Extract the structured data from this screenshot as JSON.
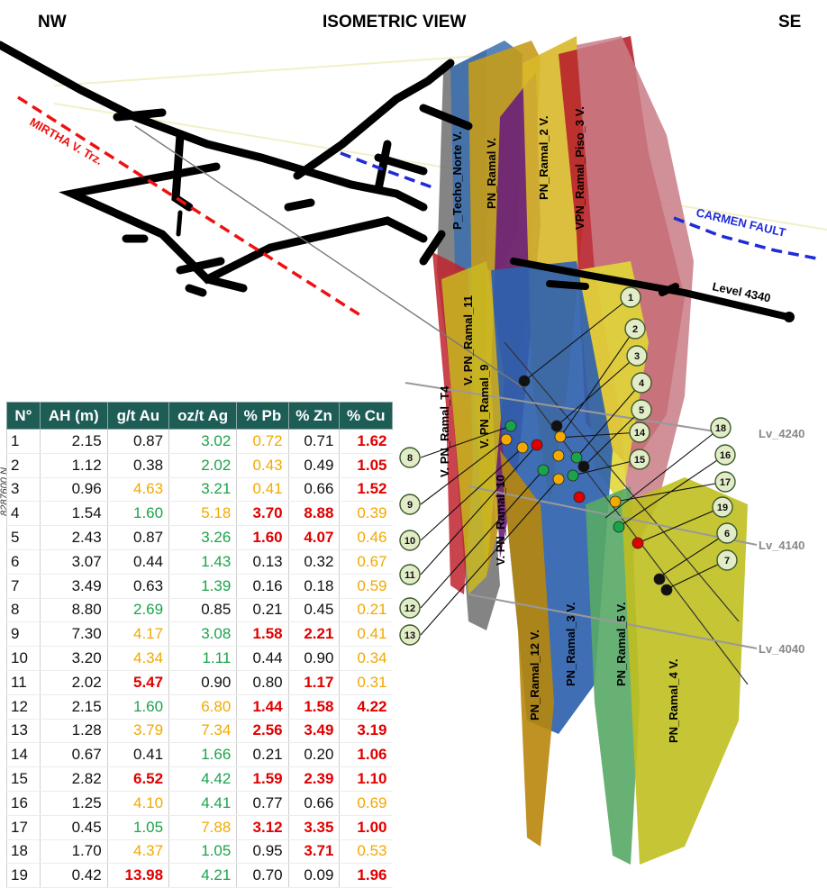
{
  "header": {
    "left": "NW",
    "center": "ISOMETRIC VIEW",
    "right": "SE"
  },
  "northing_label": "8287600 N",
  "faults": {
    "mirtha": "MIRTHA V. Trz.",
    "carmen": "CARMEN FAULT"
  },
  "levels": {
    "l4340": "Level 4340",
    "lv4240": "Lv_4240",
    "lv4140": "Lv_4140",
    "lv4040": "Lv_4040"
  },
  "vein_labels": {
    "techo_norte": "P_Techo_Norte V.",
    "pn_ramal": "PN_Ramal V.",
    "pn_ramal_2": "PN_Ramal_2 V.",
    "vpn_ramal_piso_3": "VPN_Ramal_Piso_3 V.",
    "v_pn_ramal_11": "V. PN_Ramal_11",
    "v_pn_ramal_t4": "V. PN_Ramal_T4",
    "v_pn_ramal_9": "V. PN_Ramal_9",
    "v_pn_ramal_10": "V. PN_Ramal_10",
    "pn_ramal_12": "PN_Ramal_12 V.",
    "pn_ramal_3": "PN_Ramal_3 V.",
    "pn_ramal_5": "PN_Ramal_5 V.",
    "pn_ramal_4": "PN_Ramal_4 V."
  },
  "colors": {
    "green": "#1aa34a",
    "orange": "#f2a900",
    "red": "#e00000",
    "black": "#111111",
    "header_bg": "#1d5d56",
    "tag_fill": "#e3ecc8",
    "tag_stroke": "#3b5a2a"
  },
  "samples_table": {
    "headers": [
      "N°",
      "AH (m)",
      "g/t Au",
      "oz/t Ag",
      "% Pb",
      "% Zn",
      "% Cu"
    ],
    "rows": [
      {
        "id": "1",
        "ah": "2.15",
        "au": "0.87",
        "au_c": "black",
        "ag": "3.02",
        "ag_c": "green",
        "pb": "0.72",
        "pb_c": "orange",
        "zn": "0.71",
        "zn_c": "black",
        "cu": "1.62",
        "cu_c": "red"
      },
      {
        "id": "2",
        "ah": "1.12",
        "au": "0.38",
        "au_c": "black",
        "ag": "2.02",
        "ag_c": "green",
        "pb": "0.43",
        "pb_c": "orange",
        "zn": "0.49",
        "zn_c": "black",
        "cu": "1.05",
        "cu_c": "red"
      },
      {
        "id": "3",
        "ah": "0.96",
        "au": "4.63",
        "au_c": "orange",
        "ag": "3.21",
        "ag_c": "green",
        "pb": "0.41",
        "pb_c": "orange",
        "zn": "0.66",
        "zn_c": "black",
        "cu": "1.52",
        "cu_c": "red"
      },
      {
        "id": "4",
        "ah": "1.54",
        "au": "1.60",
        "au_c": "green",
        "ag": "5.18",
        "ag_c": "orange",
        "pb": "3.70",
        "pb_c": "red",
        "zn": "8.88",
        "zn_c": "red",
        "cu": "0.39",
        "cu_c": "orange"
      },
      {
        "id": "5",
        "ah": "2.43",
        "au": "0.87",
        "au_c": "black",
        "ag": "3.26",
        "ag_c": "green",
        "pb": "1.60",
        "pb_c": "red",
        "zn": "4.07",
        "zn_c": "red",
        "cu": "0.46",
        "cu_c": "orange"
      },
      {
        "id": "6",
        "ah": "3.07",
        "au": "0.44",
        "au_c": "black",
        "ag": "1.43",
        "ag_c": "green",
        "pb": "0.13",
        "pb_c": "black",
        "zn": "0.32",
        "zn_c": "black",
        "cu": "0.67",
        "cu_c": "orange"
      },
      {
        "id": "7",
        "ah": "3.49",
        "au": "0.63",
        "au_c": "black",
        "ag": "1.39",
        "ag_c": "green",
        "pb": "0.16",
        "pb_c": "black",
        "zn": "0.18",
        "zn_c": "black",
        "cu": "0.59",
        "cu_c": "orange"
      },
      {
        "id": "8",
        "ah": "8.80",
        "au": "2.69",
        "au_c": "green",
        "ag": "0.85",
        "ag_c": "black",
        "pb": "0.21",
        "pb_c": "black",
        "zn": "0.45",
        "zn_c": "black",
        "cu": "0.21",
        "cu_c": "orange"
      },
      {
        "id": "9",
        "ah": "7.30",
        "au": "4.17",
        "au_c": "orange",
        "ag": "3.08",
        "ag_c": "green",
        "pb": "1.58",
        "pb_c": "red",
        "zn": "2.21",
        "zn_c": "red",
        "cu": "0.41",
        "cu_c": "orange"
      },
      {
        "id": "10",
        "ah": "3.20",
        "au": "4.34",
        "au_c": "orange",
        "ag": "1.11",
        "ag_c": "green",
        "pb": "0.44",
        "pb_c": "black",
        "zn": "0.90",
        "zn_c": "black",
        "cu": "0.34",
        "cu_c": "orange"
      },
      {
        "id": "11",
        "ah": "2.02",
        "au": "5.47",
        "au_c": "red",
        "ag": "0.90",
        "ag_c": "black",
        "pb": "0.80",
        "pb_c": "black",
        "zn": "1.17",
        "zn_c": "red",
        "cu": "0.31",
        "cu_c": "orange"
      },
      {
        "id": "12",
        "ah": "2.15",
        "au": "1.60",
        "au_c": "green",
        "ag": "6.80",
        "ag_c": "orange",
        "pb": "1.44",
        "pb_c": "red",
        "zn": "1.58",
        "zn_c": "red",
        "cu": "4.22",
        "cu_c": "red"
      },
      {
        "id": "13",
        "ah": "1.28",
        "au": "3.79",
        "au_c": "orange",
        "ag": "7.34",
        "ag_c": "orange",
        "pb": "2.56",
        "pb_c": "red",
        "zn": "3.49",
        "zn_c": "red",
        "cu": "3.19",
        "cu_c": "red"
      },
      {
        "id": "14",
        "ah": "0.67",
        "au": "0.41",
        "au_c": "black",
        "ag": "1.66",
        "ag_c": "green",
        "pb": "0.21",
        "pb_c": "black",
        "zn": "0.20",
        "zn_c": "black",
        "cu": "1.06",
        "cu_c": "red"
      },
      {
        "id": "15",
        "ah": "2.82",
        "au": "6.52",
        "au_c": "red",
        "ag": "4.42",
        "ag_c": "green",
        "pb": "1.59",
        "pb_c": "red",
        "zn": "2.39",
        "zn_c": "red",
        "cu": "1.10",
        "cu_c": "red"
      },
      {
        "id": "16",
        "ah": "1.25",
        "au": "4.10",
        "au_c": "orange",
        "ag": "4.41",
        "ag_c": "green",
        "pb": "0.77",
        "pb_c": "black",
        "zn": "0.66",
        "zn_c": "black",
        "cu": "0.69",
        "cu_c": "orange"
      },
      {
        "id": "17",
        "ah": "0.45",
        "au": "1.05",
        "au_c": "green",
        "ag": "7.88",
        "ag_c": "orange",
        "pb": "3.12",
        "pb_c": "red",
        "zn": "3.35",
        "zn_c": "red",
        "cu": "1.00",
        "cu_c": "red"
      },
      {
        "id": "18",
        "ah": "1.70",
        "au": "4.37",
        "au_c": "orange",
        "ag": "1.05",
        "ag_c": "green",
        "pb": "0.95",
        "pb_c": "black",
        "zn": "3.71",
        "zn_c": "red",
        "cu": "0.53",
        "cu_c": "orange"
      },
      {
        "id": "19",
        "ah": "0.42",
        "au": "13.98",
        "au_c": "red",
        "ag": "4.21",
        "ag_c": "green",
        "pb": "0.70",
        "pb_c": "black",
        "zn": "0.09",
        "zn_c": "black",
        "cu": "1.96",
        "cu_c": "red"
      }
    ]
  },
  "sample_points": [
    {
      "id": "1",
      "color": "black"
    },
    {
      "id": "2",
      "color": "orange"
    },
    {
      "id": "3",
      "color": "black"
    },
    {
      "id": "4",
      "color": "green"
    },
    {
      "id": "5",
      "color": "black"
    },
    {
      "id": "6",
      "color": "black"
    },
    {
      "id": "7",
      "color": "black"
    },
    {
      "id": "8",
      "color": "green"
    },
    {
      "id": "9",
      "color": "orange"
    },
    {
      "id": "10",
      "color": "orange"
    },
    {
      "id": "11",
      "color": "red"
    },
    {
      "id": "12",
      "color": "green"
    },
    {
      "id": "13",
      "color": "orange"
    },
    {
      "id": "14",
      "color": "orange"
    },
    {
      "id": "15",
      "color": "green"
    },
    {
      "id": "16",
      "color": "green"
    },
    {
      "id": "17",
      "color": "orange"
    },
    {
      "id": "18",
      "color": "red"
    },
    {
      "id": "19",
      "color": "red"
    }
  ]
}
